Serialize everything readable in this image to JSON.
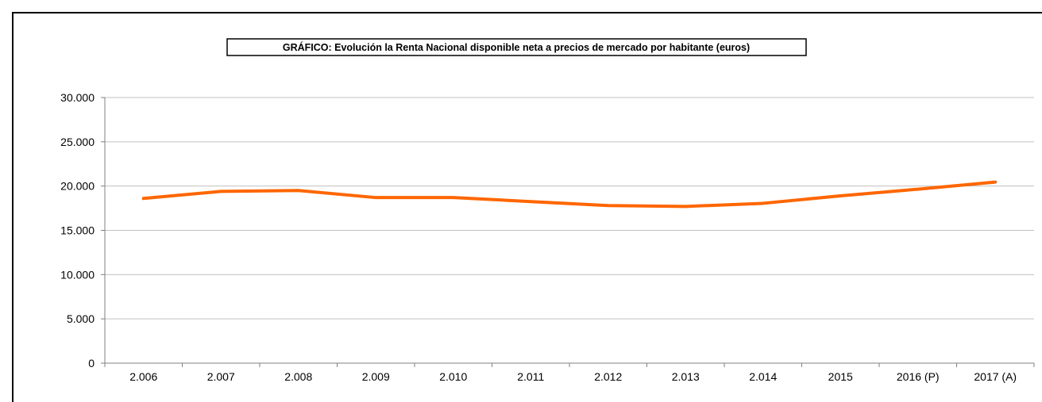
{
  "chart_data": {
    "type": "line",
    "title": "GRÁFICO: Evolución la Renta Nacional disponible neta a precios de mercado por habitante (euros)",
    "xlabel": "",
    "ylabel": "",
    "categories": [
      "2.006",
      "2.007",
      "2.008",
      "2.009",
      "2.010",
      "2.011",
      "2.012",
      "2.013",
      "2.014",
      "2015",
      "2016 (P)",
      "2017 (A)"
    ],
    "series": [
      {
        "values": [
          18600,
          19400,
          19500,
          18700,
          18700,
          18250,
          17800,
          17700,
          18050,
          18900,
          19650,
          20450
        ]
      }
    ],
    "ylim": [
      0,
      30000
    ],
    "yticks": [
      0,
      5000,
      10000,
      15000,
      20000,
      25000,
      30000
    ],
    "ytick_labels": [
      "0",
      "5.000",
      "10.000",
      "15.000",
      "20.000",
      "25.000",
      "30.000"
    ],
    "grid": true,
    "legend": "none",
    "colors": {
      "line": "#ff6600",
      "grid": "#c0c0c0",
      "axis": "#808080"
    }
  }
}
